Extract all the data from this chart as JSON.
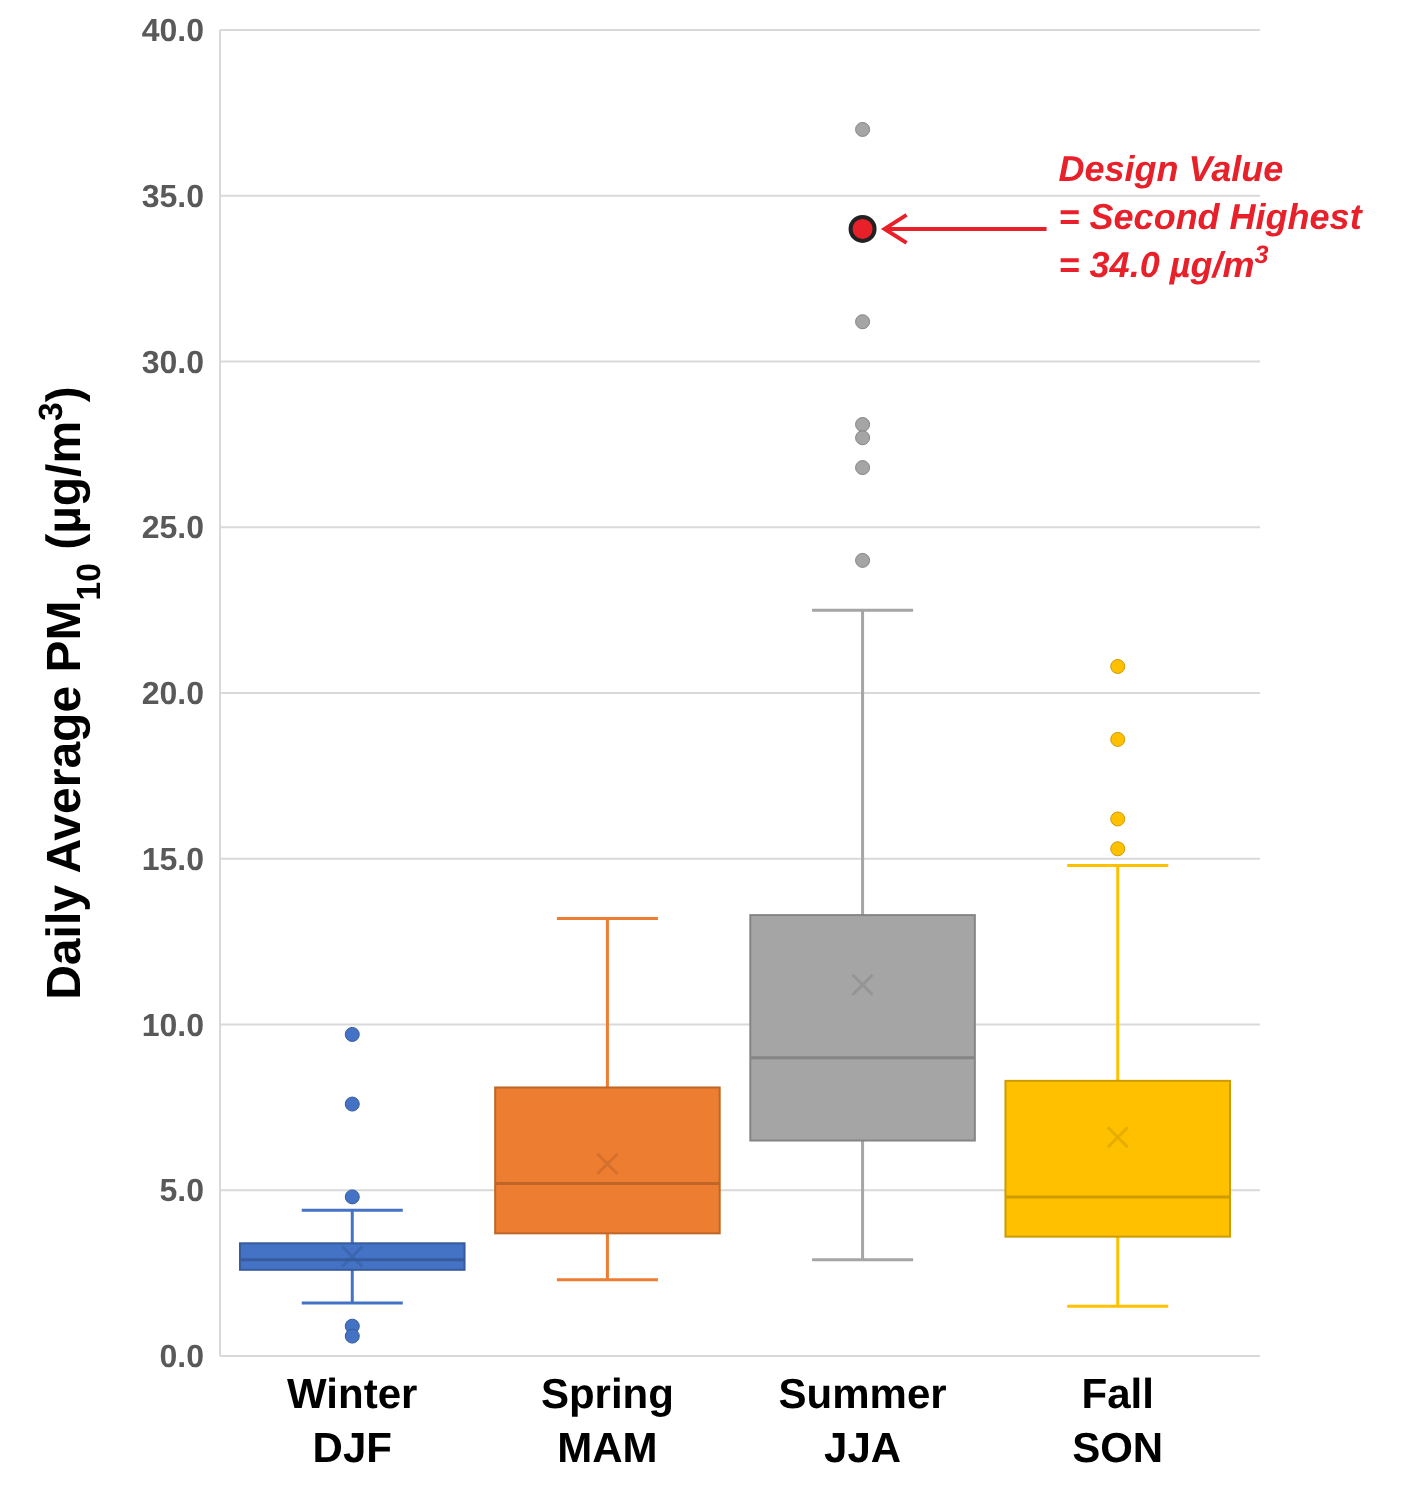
{
  "chart_data": {
    "type": "box",
    "ylabel": "Daily Average PM$_{10}$ (µg/m$^{3}$)",
    "categories": [
      "Winter\nDJF",
      "Spring\nMAM",
      "Summer\nJJA",
      "Fall\nSON"
    ],
    "colors": [
      "#4472c4",
      "#ed7d31",
      "#a5a5a5",
      "#ffc000"
    ],
    "boxes": [
      {
        "low": 1.6,
        "q1": 2.6,
        "median": 2.9,
        "q3": 3.4,
        "high": 4.4,
        "mean": 3.0,
        "outliers": [
          9.7,
          7.6,
          4.8,
          0.9,
          0.6
        ]
      },
      {
        "low": 2.3,
        "q1": 3.7,
        "median": 5.2,
        "q3": 8.1,
        "high": 13.2,
        "mean": 5.8
      },
      {
        "low": 2.9,
        "q1": 6.5,
        "median": 9.0,
        "q3": 13.3,
        "high": 22.5,
        "mean": 11.2,
        "outliers": [
          37.0,
          31.2,
          28.1,
          27.7,
          26.8,
          24.0
        ]
      },
      {
        "low": 1.5,
        "q1": 3.6,
        "median": 4.8,
        "q3": 8.3,
        "high": 14.8,
        "mean": 6.6,
        "outliers": [
          20.8,
          18.6,
          16.2,
          15.3
        ]
      }
    ],
    "series": [
      {
        "type": "scatter",
        "x": [
          "Summer\nJJA"
        ],
        "values": [
          34.0
        ],
        "color": "#e8202a",
        "marker": "circle"
      }
    ],
    "annotations": [
      "Design Value\n= Second Highest\n= 34.0 µg/m$^{3}$"
    ],
    "ylim": [
      0,
      40
    ],
    "yticks": [
      {
        "value": 0,
        "label": "0.0"
      },
      {
        "value": 5,
        "label": "5.0"
      },
      {
        "value": 10,
        "label": "10.0"
      },
      {
        "value": 15,
        "label": "15.0"
      },
      {
        "value": 20,
        "label": "20.0"
      },
      {
        "value": 25,
        "label": "25.0"
      },
      {
        "value": 30,
        "label": "30.0"
      },
      {
        "value": 35,
        "label": "35.0"
      },
      {
        "value": 40,
        "label": "40.0"
      }
    ],
    "grid": "y"
  }
}
